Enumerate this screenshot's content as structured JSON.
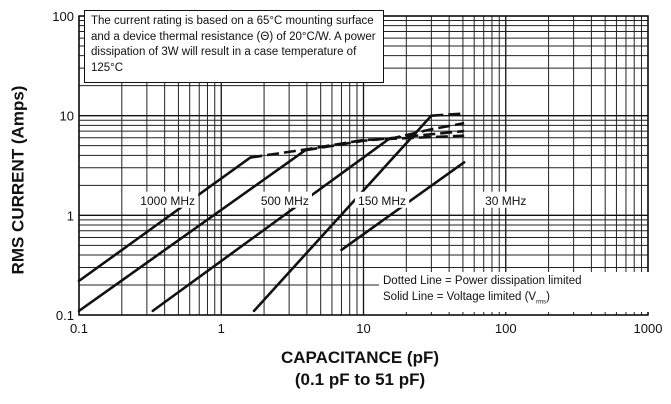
{
  "chart_data": {
    "type": "line",
    "xscale": "log",
    "yscale": "log",
    "xlim": [
      0.1,
      1000
    ],
    "ylim": [
      0.1,
      100
    ],
    "x_tick_labels": [
      "0.1",
      "1",
      "10",
      "100",
      "1000"
    ],
    "y_tick_labels": [
      "0.1",
      "1",
      "10",
      "100"
    ],
    "ylabel": "RMS CURRENT (Amps)",
    "xlabel": "CAPACITANCE (pF)",
    "xlabel_sub": "(0.1 pF to 51 pF)",
    "grid": true,
    "note": "The current rating is based on a 65°C mounting surface and a device thermal resistance (Θ) of 20°C/W. A power dissipation of 3W will result in a case temperature of 125°C",
    "legend_lines": {
      "dotted": "Dotted Line = Power dissipation limited",
      "solid_prefix": "Solid Line = Voltage limited (V",
      "solid_sub": "rms",
      "solid_suffix": ")"
    },
    "series": [
      {
        "name": "1000 MHz",
        "solid": {
          "x": [
            0.1,
            1.6
          ],
          "y": [
            0.22,
            3.8
          ]
        },
        "dashed": {
          "x": [
            1.6,
            4.0,
            10,
            51
          ],
          "y": [
            3.8,
            4.6,
            5.7,
            6.3
          ]
        }
      },
      {
        "name": "500 MHz",
        "solid": {
          "x": [
            0.1,
            3.9
          ],
          "y": [
            0.11,
            4.5
          ]
        },
        "dashed": {
          "x": [
            3.9,
            10,
            51
          ],
          "y": [
            4.5,
            5.6,
            7.0
          ]
        }
      },
      {
        "name": "150 MHz",
        "solid": {
          "x": [
            0.33,
            15
          ],
          "y": [
            0.11,
            5.8
          ]
        },
        "dashed": {
          "x": [
            15,
            30,
            51
          ],
          "y": [
            5.8,
            7.3,
            8.4
          ]
        }
      },
      {
        "name": "30 MHz",
        "solid": {
          "x": [
            1.7,
            30
          ],
          "y": [
            0.11,
            10
          ]
        },
        "dashed": {
          "x": [
            30,
            51
          ],
          "y": [
            10,
            10.5
          ]
        }
      },
      {
        "name": "",
        "solid": {
          "x": [
            7.0,
            51
          ],
          "y": [
            0.45,
            3.4
          ]
        },
        "dashed": {
          "x": [],
          "y": []
        }
      }
    ],
    "series_label_positions": [
      {
        "name": "1000 MHz",
        "x": 0.42,
        "y": 1.4
      },
      {
        "name": "500 MHz",
        "x": 2.8,
        "y": 1.4
      },
      {
        "name": "150 MHz",
        "x": 13.5,
        "y": 1.4
      },
      {
        "name": "30 MHz",
        "x": 100,
        "y": 1.4
      }
    ]
  }
}
